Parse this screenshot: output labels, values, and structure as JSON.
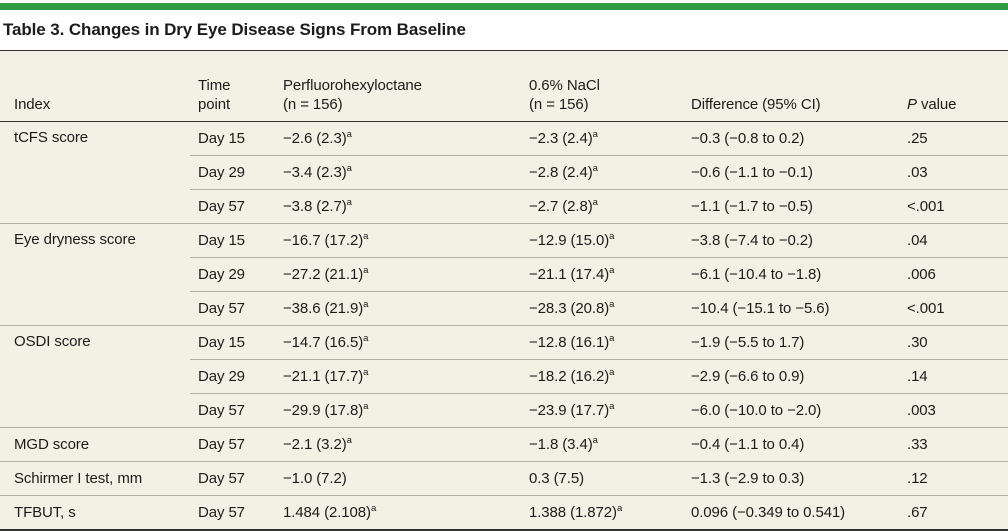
{
  "colors": {
    "accent_bar": "#2E9B43",
    "table_background": "#F3F1E4",
    "rule_dark": "#323232",
    "rule_light": "#B3B0A3",
    "text": "#1C1C1C"
  },
  "title": "Table 3. Changes in Dry Eye Disease Signs From Baseline",
  "table": {
    "headers": {
      "index": "Index",
      "time_l1": "Time",
      "time_l2": "point",
      "drug1_l1": "Perfluorohexyloctane",
      "drug1_l2": "(n = 156)",
      "drug2_l1": "0.6% NaCl",
      "drug2_l2": "(n = 156)",
      "diff": "Difference (95% CI)",
      "p_italic": "P",
      "p_rest": " value"
    },
    "footnote_marker": "a",
    "rows": [
      {
        "index": "tCFS score",
        "time": "Day 15",
        "pfh": "−2.6 (2.3)",
        "pfh_sup": "a",
        "nacl": "−2.3 (2.4)",
        "nacl_sup": "a",
        "diff": "−0.3 (−0.8 to 0.2)",
        "p": ".25"
      },
      {
        "time": "Day 29",
        "pfh": "−3.4 (2.3)",
        "pfh_sup": "a",
        "nacl": "−2.8 (2.4)",
        "nacl_sup": "a",
        "diff": "−0.6 (−1.1 to −0.1)",
        "p": ".03"
      },
      {
        "time": "Day 57",
        "pfh": "−3.8 (2.7)",
        "pfh_sup": "a",
        "nacl": "−2.7 (2.8)",
        "nacl_sup": "a",
        "diff": "−1.1 (−1.7 to −0.5)",
        "p": "<.001"
      },
      {
        "index": "Eye dryness score",
        "time": "Day 15",
        "pfh": "−16.7 (17.2)",
        "pfh_sup": "a",
        "nacl": "−12.9 (15.0)",
        "nacl_sup": "a",
        "diff": "−3.8 (−7.4 to −0.2)",
        "p": ".04"
      },
      {
        "time": "Day 29",
        "pfh": "−27.2 (21.1)",
        "pfh_sup": "a",
        "nacl": "−21.1 (17.4)",
        "nacl_sup": "a",
        "diff": "−6.1 (−10.4 to −1.8)",
        "p": ".006"
      },
      {
        "time": "Day 57",
        "pfh": "−38.6 (21.9)",
        "pfh_sup": "a",
        "nacl": "−28.3 (20.8)",
        "nacl_sup": "a",
        "diff": "−10.4 (−15.1 to −5.6)",
        "p": "<.001"
      },
      {
        "index": "OSDI score",
        "time": "Day 15",
        "pfh": "−14.7 (16.5)",
        "pfh_sup": "a",
        "nacl": "−12.8 (16.1)",
        "nacl_sup": "a",
        "diff": "−1.9 (−5.5 to 1.7)",
        "p": ".30"
      },
      {
        "time": "Day 29",
        "pfh": "−21.1 (17.7)",
        "pfh_sup": "a",
        "nacl": "−18.2 (16.2)",
        "nacl_sup": "a",
        "diff": "−2.9 (−6.6 to 0.9)",
        "p": ".14"
      },
      {
        "time": "Day 57",
        "pfh": "−29.9 (17.8)",
        "pfh_sup": "a",
        "nacl": "−23.9 (17.7)",
        "nacl_sup": "a",
        "diff": "−6.0 (−10.0 to −2.0)",
        "p": ".003"
      },
      {
        "index": "MGD score",
        "time": "Day 57",
        "pfh": "−2.1 (3.2)",
        "pfh_sup": "a",
        "nacl": "−1.8 (3.4)",
        "nacl_sup": "a",
        "diff": "−0.4 (−1.1 to 0.4)",
        "p": ".33"
      },
      {
        "index": "Schirmer I test, mm",
        "time": "Day 57",
        "pfh": "−1.0 (7.2)",
        "nacl": "0.3 (7.5)",
        "diff": "−1.3 (−2.9 to 0.3)",
        "p": ".12"
      },
      {
        "index": "TFBUT, s",
        "time": "Day 57",
        "pfh": "1.484 (2.108)",
        "pfh_sup": "a",
        "nacl": "1.388 (1.872)",
        "nacl_sup": "a",
        "diff": "0.096 (−0.349 to 0.541)",
        "p": ".67"
      }
    ]
  }
}
